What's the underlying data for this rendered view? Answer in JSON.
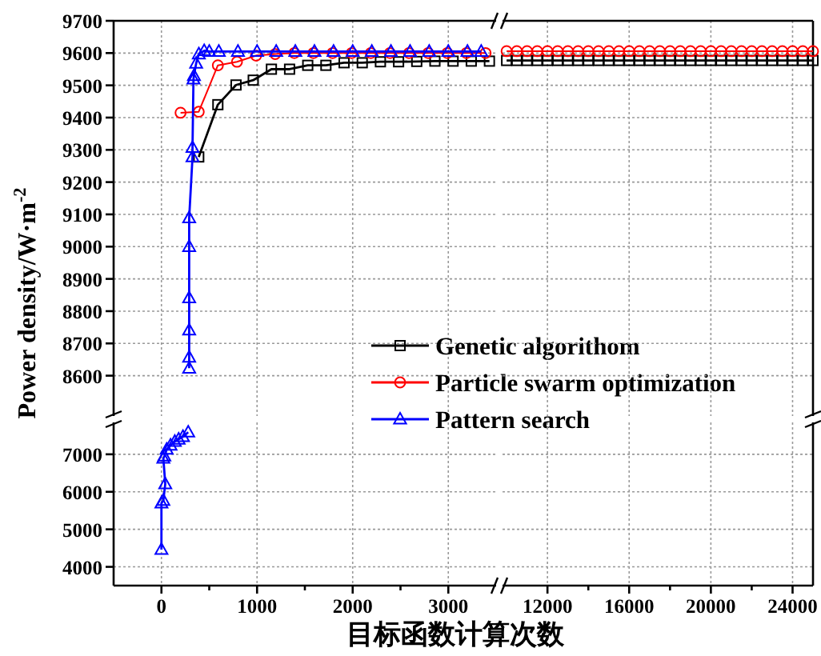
{
  "chart_data": [
    {
      "type": "line",
      "ylabel": "Power density/W·m$^{-2}$",
      "xlim": [
        -500,
        3500
      ],
      "ylim": [
        8475,
        9700
      ],
      "xticks": [
        0,
        1000,
        2000,
        3000
      ],
      "yticks": [
        8600,
        8700,
        8800,
        8900,
        9000,
        9100,
        9200,
        9300,
        9400,
        9500,
        9600,
        9700
      ],
      "tick_labels": "y",
      "grid": true,
      "legend": "bottom right",
      "series": [
        {
          "name": "Genetic algorithom",
          "color": "#000000",
          "marker": "square",
          "x": [
            390,
            590,
            780,
            960,
            1150,
            1340,
            1530,
            1720,
            1910,
            2100,
            2290,
            2480,
            2670,
            2860,
            3050,
            3240,
            3430
          ],
          "values": [
            9278,
            9440,
            9501,
            9516,
            9550,
            9550,
            9562,
            9562,
            9570,
            9570,
            9573,
            9573,
            9574,
            9575,
            9575,
            9575,
            9575
          ]
        },
        {
          "name": "Particle swarm optimization",
          "color": "#ff0000",
          "marker": "circle",
          "x": [
            200,
            390,
            590,
            790,
            990,
            1190,
            1390,
            1590,
            1790,
            1990,
            2190,
            2390,
            2590,
            2790,
            2990,
            3190,
            3390
          ],
          "values": [
            9415,
            9418,
            9562,
            9573,
            9592,
            9597,
            9600,
            9600,
            9600,
            9600,
            9600,
            9600,
            9600,
            9600,
            9600,
            9600,
            9600
          ]
        },
        {
          "name": "Pattern search",
          "color": "#0000ff",
          "marker": "triangle",
          "x": [
            290,
            290,
            290,
            290,
            290,
            290,
            325,
            325,
            335,
            340,
            363,
            391,
            447,
            500,
            600,
            800,
            1000,
            1200,
            1400,
            1600,
            1800,
            2000,
            2200,
            2400,
            2600,
            2800,
            3000,
            3200,
            3344
          ],
          "values": [
            8623,
            8657,
            8741,
            8841,
            9000,
            9089,
            9278,
            9307,
            9519,
            9530,
            9568,
            9597,
            9607,
            9605,
            9605,
            9605,
            9605,
            9605,
            9605,
            9605,
            9605,
            9605,
            9605,
            9605,
            9605,
            9605,
            9605,
            9605,
            9605
          ]
        }
      ]
    },
    {
      "type": "line",
      "xlim": [
        9800,
        25000
      ],
      "ylim": [
        8475,
        9700
      ],
      "xticks": [
        12000,
        16000,
        20000,
        24000
      ],
      "yticks": [
        8600,
        8700,
        8800,
        8900,
        9000,
        9100,
        9200,
        9300,
        9400,
        9500,
        9600,
        9700
      ],
      "tick_labels": false,
      "grid": true,
      "series": [
        {
          "color": "#000000",
          "marker": "square",
          "x": [
            10000,
            10500,
            11000,
            11500,
            12000,
            12500,
            13000,
            13500,
            14000,
            14500,
            15000,
            15500,
            16000,
            16500,
            17000,
            17500,
            18000,
            18500,
            19000,
            19500,
            20000,
            20500,
            21000,
            21500,
            22000,
            22500,
            23000,
            23500,
            24000,
            24500,
            25000
          ],
          "values": [
            9577,
            9577,
            9577,
            9577,
            9577,
            9577,
            9577,
            9577,
            9577,
            9577,
            9577,
            9577,
            9577,
            9577,
            9577,
            9577,
            9577,
            9577,
            9577,
            9577,
            9577,
            9577,
            9577,
            9577,
            9577,
            9577,
            9577,
            9577,
            9577,
            9577,
            9577
          ]
        },
        {
          "color": "#ff0000",
          "marker": "circle",
          "x": [
            10000,
            10500,
            11000,
            11500,
            12000,
            12500,
            13000,
            13500,
            14000,
            14500,
            15000,
            15500,
            16000,
            16500,
            17000,
            17500,
            18000,
            18500,
            19000,
            19500,
            20000,
            20500,
            21000,
            21500,
            22000,
            22500,
            23000,
            23500,
            24000,
            24500,
            25000
          ],
          "values": [
            9606,
            9606,
            9606,
            9606,
            9606,
            9606,
            9606,
            9606,
            9606,
            9606,
            9606,
            9606,
            9606,
            9606,
            9606,
            9606,
            9606,
            9606,
            9606,
            9606,
            9606,
            9606,
            9606,
            9606,
            9606,
            9606,
            9606,
            9606,
            9606,
            9606,
            9606
          ]
        }
      ]
    },
    {
      "type": "line",
      "xlabel": "目标函数计算次数",
      "xlim": [
        -500,
        3500
      ],
      "ylim": [
        3500,
        7850
      ],
      "xticks": [
        0,
        {
          "value": 500,
          "label": null
        },
        1000,
        {
          "value": 1500,
          "label": null
        },
        2000,
        {
          "value": 2500,
          "label": null
        },
        3000
      ],
      "yticks": [
        4000,
        5000,
        6000,
        7000
      ],
      "grid": true,
      "series": [
        {
          "color": "#0000ff",
          "marker": "triangle",
          "x": [
            0,
            0,
            20,
            40,
            20,
            30,
            55,
            95,
            140,
            180,
            225,
            280
          ],
          "values": [
            4460,
            5700,
            5770,
            6210,
            6890,
            6950,
            7130,
            7240,
            7340,
            7400,
            7470,
            7590
          ]
        }
      ]
    },
    {
      "type": "line",
      "xlim": [
        9800,
        25000
      ],
      "ylim": [
        3500,
        7850
      ],
      "xticks": [
        12000,
        {
          "value": 14000,
          "label": null
        },
        16000,
        {
          "value": 18000,
          "label": null
        },
        20000,
        {
          "value": 22000,
          "label": null
        },
        24000
      ],
      "yticks": [
        4000,
        5000,
        6000,
        7000
      ],
      "tick_labels": "x",
      "grid": true
    }
  ]
}
